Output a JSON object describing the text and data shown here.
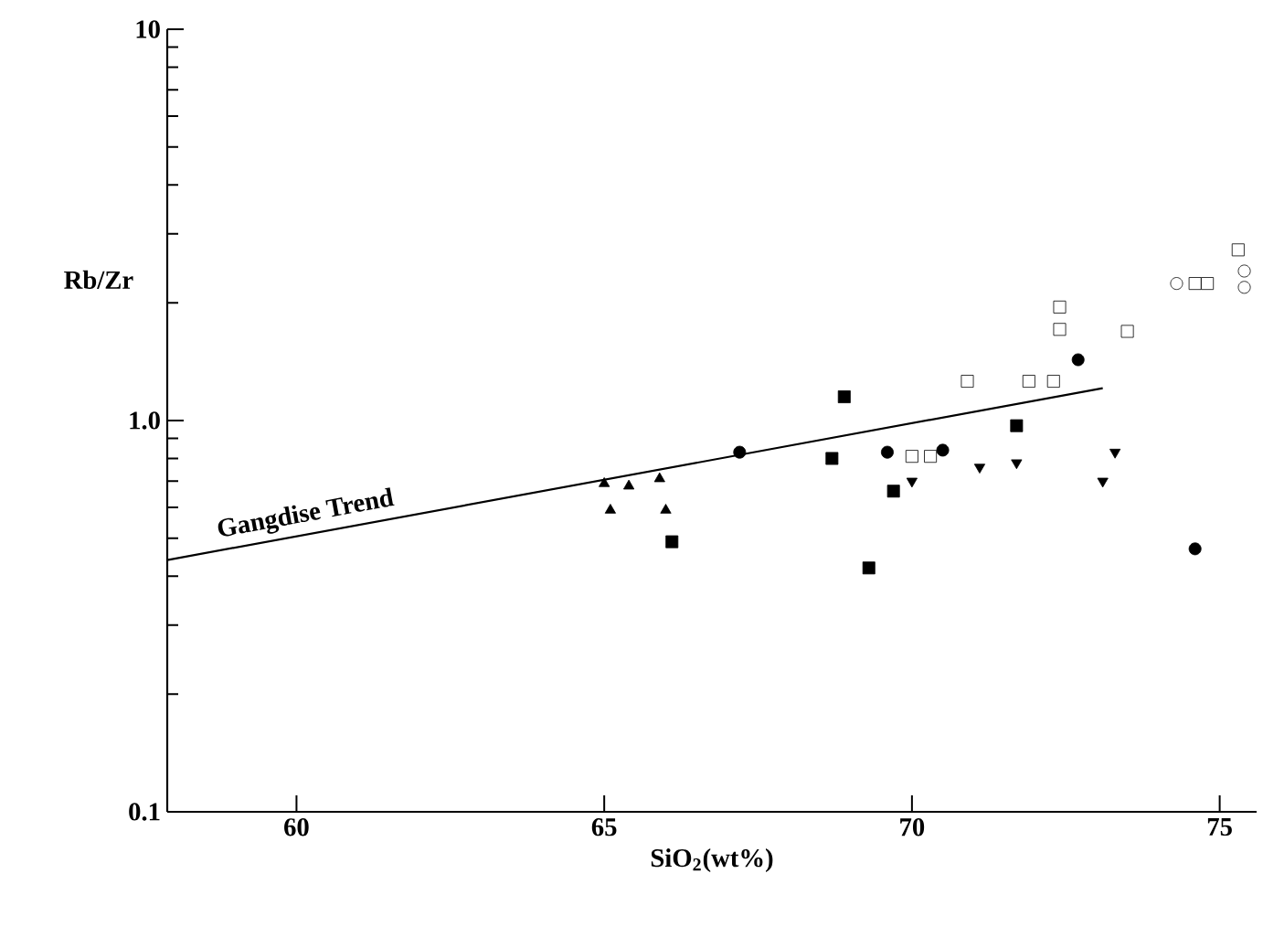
{
  "chart_data": {
    "type": "scatter",
    "xlabel": "SiO$_{2}$(wt%)",
    "ylabel": "Rb/Zr",
    "log": "y",
    "grid": false,
    "xlim": [
      57.9,
      75.6
    ],
    "ylim": [
      0.1,
      10
    ],
    "xticks": [
      60,
      65,
      70,
      75
    ],
    "yticks": [
      0.1,
      {
        "value": 1,
        "label": "1.0"
      },
      10
    ],
    "series": [
      {
        "marker": "triangle",
        "color": "#000000",
        "x": [
          65.0,
          65.1,
          65.4,
          65.9,
          66.0
        ],
        "values": [
          0.69,
          0.59,
          0.68,
          0.71,
          0.59
        ]
      },
      {
        "marker": "square",
        "color": "#000000",
        "x": [
          66.1,
          68.9,
          68.7,
          69.7,
          69.3,
          71.7
        ],
        "values": [
          0.49,
          1.15,
          0.8,
          0.66,
          0.42,
          0.97
        ]
      },
      {
        "marker": "circle",
        "color": "#000000",
        "x": [
          67.2,
          69.6,
          70.5,
          72.7,
          74.6
        ],
        "values": [
          0.83,
          0.83,
          0.84,
          1.43,
          0.47
        ]
      },
      {
        "marker": "triangle-down",
        "color": "#000000",
        "x": [
          70.0,
          71.1,
          71.7,
          73.3,
          73.1
        ],
        "values": [
          0.7,
          0.76,
          0.78,
          0.83,
          0.7
        ]
      },
      {
        "marker": "square-open",
        "color": "#000000",
        "x": [
          70.0,
          70.3,
          70.9,
          71.9,
          72.3,
          72.4,
          72.4,
          73.5,
          74.6,
          74.8,
          75.3
        ],
        "values": [
          0.81,
          0.81,
          1.26,
          1.26,
          1.26,
          1.95,
          1.71,
          1.69,
          2.24,
          2.24,
          2.73
        ]
      },
      {
        "marker": "circle-open",
        "color": "#000000",
        "x": [
          74.3,
          75.4,
          75.4
        ],
        "values": [
          2.24,
          2.41,
          2.19
        ]
      },
      {
        "type": "line",
        "name": "Gangdise Trend",
        "marker": "none",
        "line_style": "solid",
        "color": "#000000",
        "x": [
          57.9,
          73.1
        ],
        "values": [
          0.44,
          1.21
        ]
      }
    ]
  }
}
